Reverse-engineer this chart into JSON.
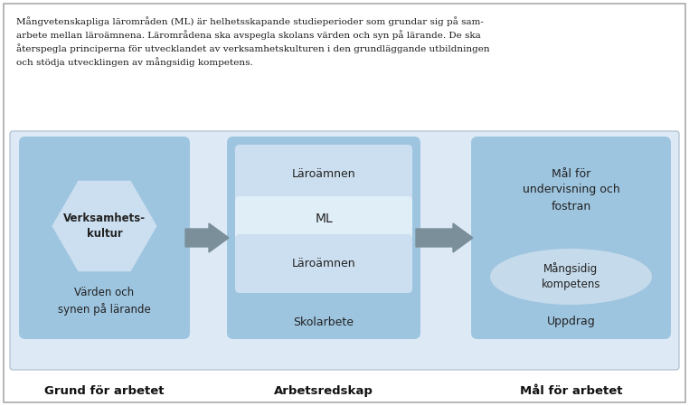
{
  "title_text": "Mångvetenskapliga lärområden (ML) är helhetsskapande studieperioder som grundar sig på sam-\narbete mellan läroämnena. Lärområdena ska avspegla skolans värden och syn på lärande. De ska\nåterspegla principerna för utvecklandet av verksamhetskulturen i den grundläggande utbildningen\noch stödja utvecklingen av mångsidig kompetens.",
  "box_bg_color": "#9ec5e0",
  "hex_color": "#ccdff0",
  "ml_bar_color": "#e0eef8",
  "ellipse_color": "#c5daea",
  "arrow_color": "#7a8f9a",
  "box1_label": "Grund för arbetet",
  "box2_label": "Arbetsredskap",
  "box3_label": "Mål för arbetet",
  "hex_text": "Verksamhets-\nkultur",
  "bottom1_text": "Värden och\nsynen på lärande",
  "laroamnen_top": "Läroämnen",
  "ml_text": "ML",
  "laroamnen_bot": "Läroämnen",
  "skolarbete_text": "Skolarbete",
  "mal_text": "Mål för\nundervisning och\nfostran",
  "mangsidig_text": "Mångsidig\nkompetens",
  "uppdrag_text": "Uppdrag",
  "fig_bg": "#ffffff",
  "border_color": "#aaaaaa",
  "diagram_bg": "#ddeaf5",
  "text_color": "#1a1a1a"
}
